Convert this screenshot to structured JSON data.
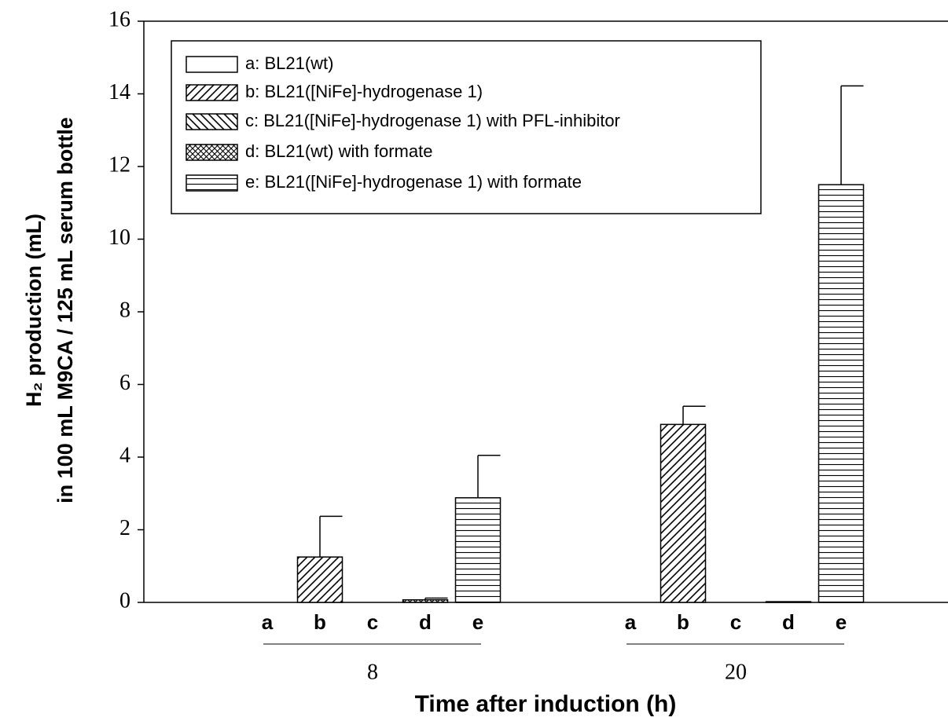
{
  "chart_data": {
    "type": "bar",
    "xlabel": "Time after induction (h)",
    "ylabel": [
      "H₂ production (mL)",
      "in 100 mL M9CA / 125 mL serum bottle"
    ],
    "categories": [
      "8",
      "20"
    ],
    "sub_categories": [
      "a",
      "b",
      "c",
      "d",
      "e"
    ],
    "ylim": [
      0,
      16
    ],
    "yticks": [
      0,
      2,
      4,
      6,
      8,
      10,
      12,
      14,
      16
    ],
    "series": [
      {
        "name": "a: BL21(wt)",
        "color": "#000000",
        "pattern": "none",
        "values": [
          0,
          0
        ],
        "errors": [
          null,
          null
        ]
      },
      {
        "name": "b: BL21([NiFe]-hydrogenase 1)",
        "color": "#000000",
        "pattern": "forward",
        "values": [
          1.25,
          4.9
        ],
        "errors": [
          1.12,
          0.5
        ]
      },
      {
        "name": "c: BL21([NiFe]-hydrogenase 1) with PFL-inhibitor",
        "color": "#000000",
        "pattern": "back",
        "values": [
          0,
          0
        ],
        "errors": [
          null,
          null
        ]
      },
      {
        "name": "d: BL21(wt) with formate",
        "color": "#000000",
        "pattern": "cross",
        "values": [
          0.07,
          0.02
        ],
        "errors": [
          0.05,
          null
        ]
      },
      {
        "name": "e: BL21([NiFe]-hydrogenase 1) with formate",
        "color": "#000000",
        "pattern": "horizontal",
        "values": [
          2.88,
          11.5
        ],
        "errors": [
          1.17,
          2.72
        ]
      }
    ],
    "legend": "upper left"
  }
}
